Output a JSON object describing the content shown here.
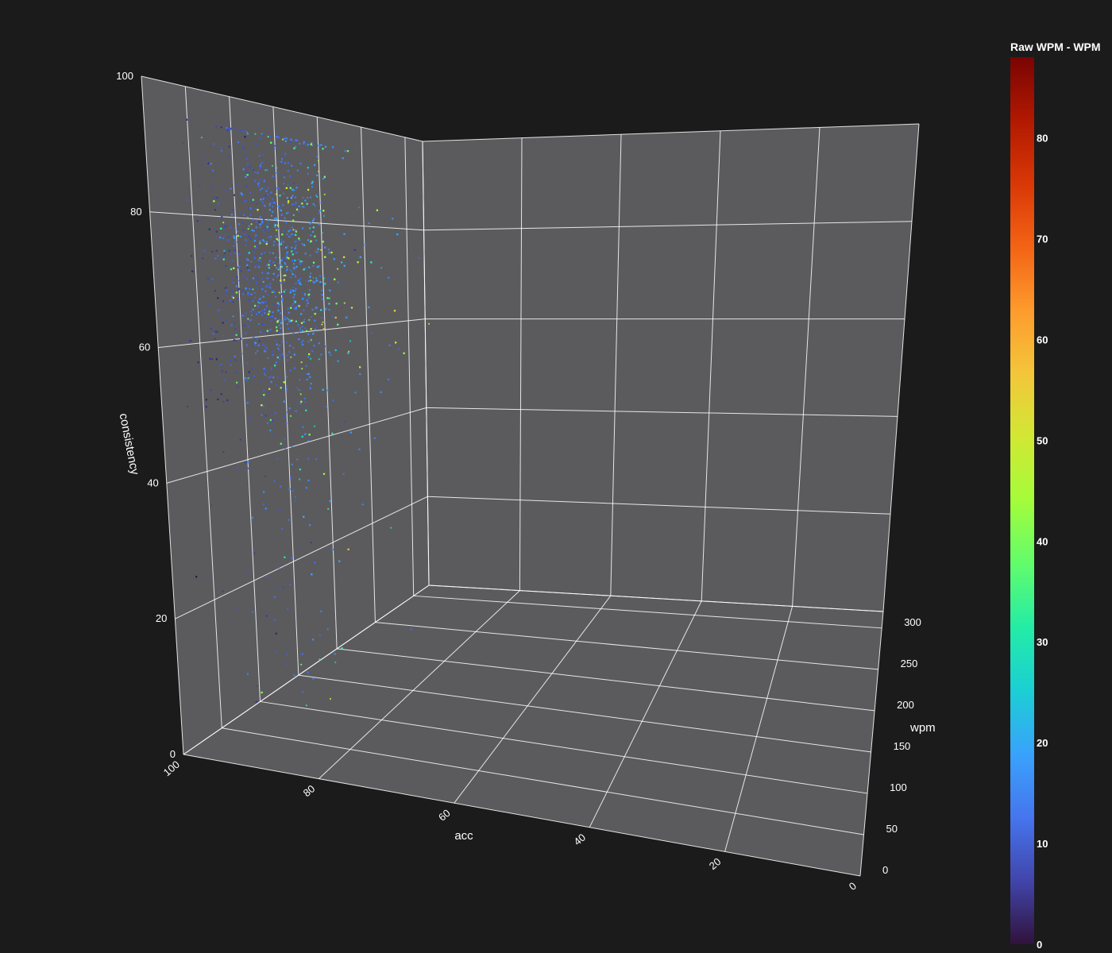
{
  "chart_data": {
    "type": "scatter",
    "subtype": "scatter3d",
    "title": "",
    "background": "#1b1b1b",
    "plane_color": "#5b5b5e",
    "grid_color": "#ffffff",
    "x_axis": {
      "title": "acc",
      "range": [
        0,
        100
      ],
      "ticks": [
        100,
        80,
        60,
        40,
        20,
        0
      ],
      "tick_labels": [
        "100",
        "80",
        "60",
        "40",
        "20",
        "0"
      ],
      "reversed": true
    },
    "y_axis": {
      "title": "wpm",
      "range": [
        0,
        320
      ],
      "ticks": [
        0,
        50,
        100,
        150,
        200,
        250,
        300
      ],
      "tick_labels": [
        "0",
        "50",
        "100",
        "150",
        "200",
        "250",
        "300"
      ]
    },
    "z_axis": {
      "title": "consistency",
      "range": [
        0,
        100
      ],
      "ticks": [
        0,
        20,
        40,
        60,
        80,
        100
      ],
      "tick_labels": [
        "0",
        "20",
        "40",
        "60",
        "80",
        "100"
      ]
    },
    "colorbar": {
      "title": "Raw WPM - WPM",
      "range": [
        0,
        88
      ],
      "ticks": [
        0,
        10,
        20,
        30,
        40,
        50,
        60,
        70,
        80
      ],
      "tick_labels": [
        "0",
        "10",
        "20",
        "30",
        "40",
        "50",
        "60",
        "70",
        "80"
      ],
      "colorscale": [
        "#30123b",
        "#4145ab",
        "#4675ed",
        "#39a2fc",
        "#1bcfd4",
        "#24eca6",
        "#61fc6c",
        "#a4fc3b",
        "#d1e834",
        "#f3c63a",
        "#fe9b2d",
        "#f36315",
        "#d93806",
        "#b11901",
        "#7a0402"
      ]
    },
    "distribution_summary": {
      "acc_center": 96,
      "acc_spread": 3.5,
      "wpm_center": 100,
      "wpm_spread": 35,
      "consistency_center": 78,
      "consistency_spread": 12,
      "color_value_typical": 8
    }
  }
}
